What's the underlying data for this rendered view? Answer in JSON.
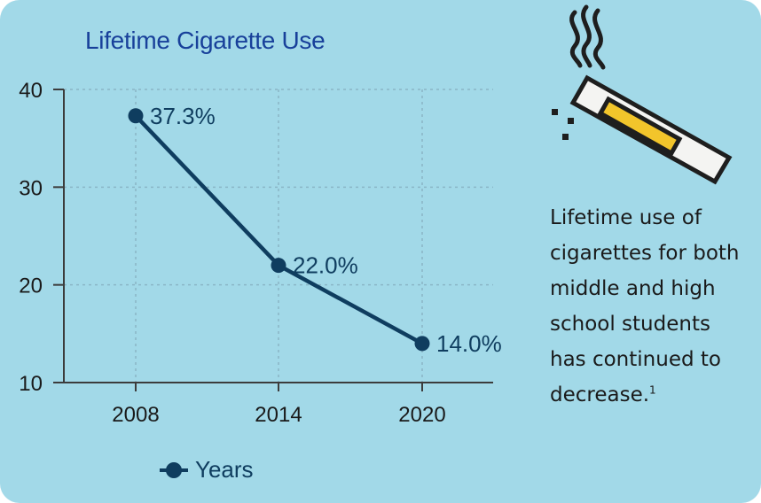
{
  "colors": {
    "background": "#a2d9e8",
    "navy": "#0f3d5f",
    "title": "#18409a",
    "grid": "#8ab6c6",
    "axis": "#3c3c3c",
    "text": "#1a1a1a",
    "cigarette_body": "#f4f4f2",
    "cigarette_filter": "#f2c52b",
    "cigarette_outline": "#1e1e1e"
  },
  "chart_data": {
    "type": "line",
    "title": "Lifetime Cigarette Use",
    "xlabel": "",
    "ylabel": "",
    "x": [
      "2008",
      "2014",
      "2020"
    ],
    "y_ticks": [
      10,
      20,
      30,
      40
    ],
    "ylim": [
      10,
      40
    ],
    "grid": true,
    "legend_position": "bottom",
    "series": [
      {
        "name": "Years",
        "values": [
          37.3,
          22.0,
          14.0
        ],
        "labels": [
          "37.3%",
          "22.0%",
          "14.0%"
        ]
      }
    ]
  },
  "icon": {
    "name": "cigarette-icon"
  },
  "caption": {
    "text": "Lifetime use of cigarettes for both middle and high school students has continued to decrease.",
    "footnote": "1"
  }
}
